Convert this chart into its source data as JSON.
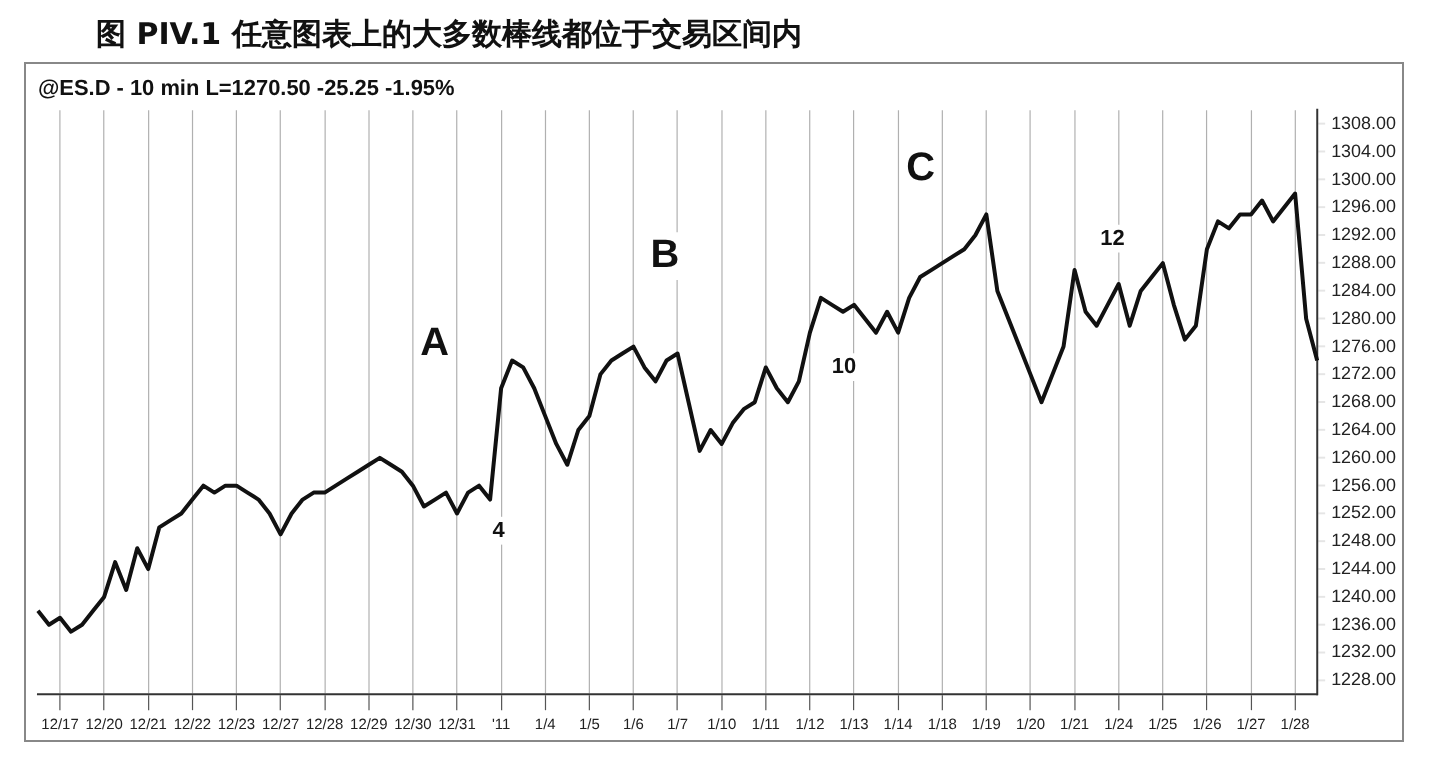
{
  "chart_data": {
    "type": "line",
    "title": "图 PIV.1 任意图表上的大多数棒线都位于交易区间内",
    "subtitle": "@ES.D - 10 min L=1270.50 -25.25 -1.95%",
    "categories": [
      null,
      null,
      "12/17",
      null,
      null,
      null,
      "12/20",
      null,
      null,
      null,
      "12/21",
      null,
      null,
      null,
      "12/22",
      null,
      null,
      null,
      "12/23",
      null,
      null,
      null,
      "12/27",
      null,
      null,
      null,
      "12/28",
      null,
      null,
      null,
      "12/29",
      null,
      null,
      null,
      "12/30",
      null,
      null,
      null,
      "12/31",
      null,
      null,
      null,
      "'11",
      null,
      null,
      null,
      "1/4",
      null,
      null,
      null,
      "1/5",
      null,
      null,
      null,
      "1/6",
      null,
      null,
      null,
      "1/7",
      null,
      null,
      null,
      "1/10",
      null,
      null,
      null,
      "1/11",
      null,
      null,
      null,
      "1/12",
      null,
      null,
      null,
      "1/13",
      null,
      null,
      null,
      "1/14",
      null,
      null,
      null,
      "1/18",
      null,
      null,
      null,
      "1/19",
      null,
      null,
      null,
      "1/20",
      null,
      null,
      null,
      "1/21",
      null,
      null,
      null,
      "1/24",
      null,
      null,
      null,
      "1/25",
      null,
      null,
      null,
      "1/26",
      null,
      null,
      null,
      "1/27",
      null,
      null,
      null,
      "1/28",
      null,
      null
    ],
    "series": [
      {
        "color": "#111111",
        "values": [
          1238,
          1236,
          1237,
          1235,
          1236,
          1238,
          1240,
          1245,
          1241,
          1247,
          1244,
          1250,
          1251,
          1252,
          1254,
          1256,
          1255,
          1256,
          1256,
          1255,
          1254,
          1252,
          1249,
          1252,
          1254,
          1255,
          1255,
          1256,
          1257,
          1258,
          1259,
          1260,
          1259,
          1258,
          1256,
          1253,
          1254,
          1255,
          1252,
          1255,
          1256,
          1254,
          1270,
          1274,
          1273,
          1270,
          1266,
          1262,
          1259,
          1264,
          1266,
          1272,
          1274,
          1275,
          1276,
          1273,
          1271,
          1274,
          1275,
          1268,
          1261,
          1264,
          1262,
          1265,
          1267,
          1268,
          1273,
          1270,
          1268,
          1271,
          1278,
          1283,
          1282,
          1281,
          1282,
          1280,
          1278,
          1281,
          1278,
          1283,
          1286,
          1287,
          1288,
          1289,
          1290,
          1292,
          1295,
          1284,
          1280,
          1276,
          1272,
          1268,
          1272,
          1276,
          1287,
          1281,
          1279,
          1282,
          1285,
          1279,
          1284,
          1286,
          1288,
          1282,
          1277,
          1279,
          1290,
          1294,
          1293,
          1295,
          1295,
          1297,
          1294,
          1296,
          1298,
          1280,
          1274
        ]
      }
    ],
    "ylim": [
      1226,
      1310
    ],
    "yticks": [
      {
        "value": 1228,
        "label": "1228.00"
      },
      {
        "value": 1232,
        "label": "1232.00"
      },
      {
        "value": 1236,
        "label": "1236.00"
      },
      {
        "value": 1240,
        "label": "1240.00"
      },
      {
        "value": 1244,
        "label": "1244.00"
      },
      {
        "value": 1248,
        "label": "1248.00"
      },
      {
        "value": 1252,
        "label": "1252.00"
      },
      {
        "value": 1256,
        "label": "1256.00"
      },
      {
        "value": 1260,
        "label": "1260.00"
      },
      {
        "value": 1264,
        "label": "1264.00"
      },
      {
        "value": 1268,
        "label": "1268.00"
      },
      {
        "value": 1272,
        "label": "1272.00"
      },
      {
        "value": 1276,
        "label": "1276.00"
      },
      {
        "value": 1280,
        "label": "1280.00"
      },
      {
        "value": 1284,
        "label": "1284.00"
      },
      {
        "value": 1288,
        "label": "1288.00"
      },
      {
        "value": 1292,
        "label": "1292.00"
      },
      {
        "value": 1296,
        "label": "1296.00"
      },
      {
        "value": 1300,
        "label": "1300.00"
      },
      {
        "value": 1304,
        "label": "1304.00"
      },
      {
        "value": 1308,
        "label": "1308.00"
      }
    ],
    "annotations": [
      "A",
      "B",
      "C",
      "4",
      "10",
      "12"
    ],
    "grid": "x",
    "line_style": "solid",
    "marker": "none",
    "legend": false
  }
}
